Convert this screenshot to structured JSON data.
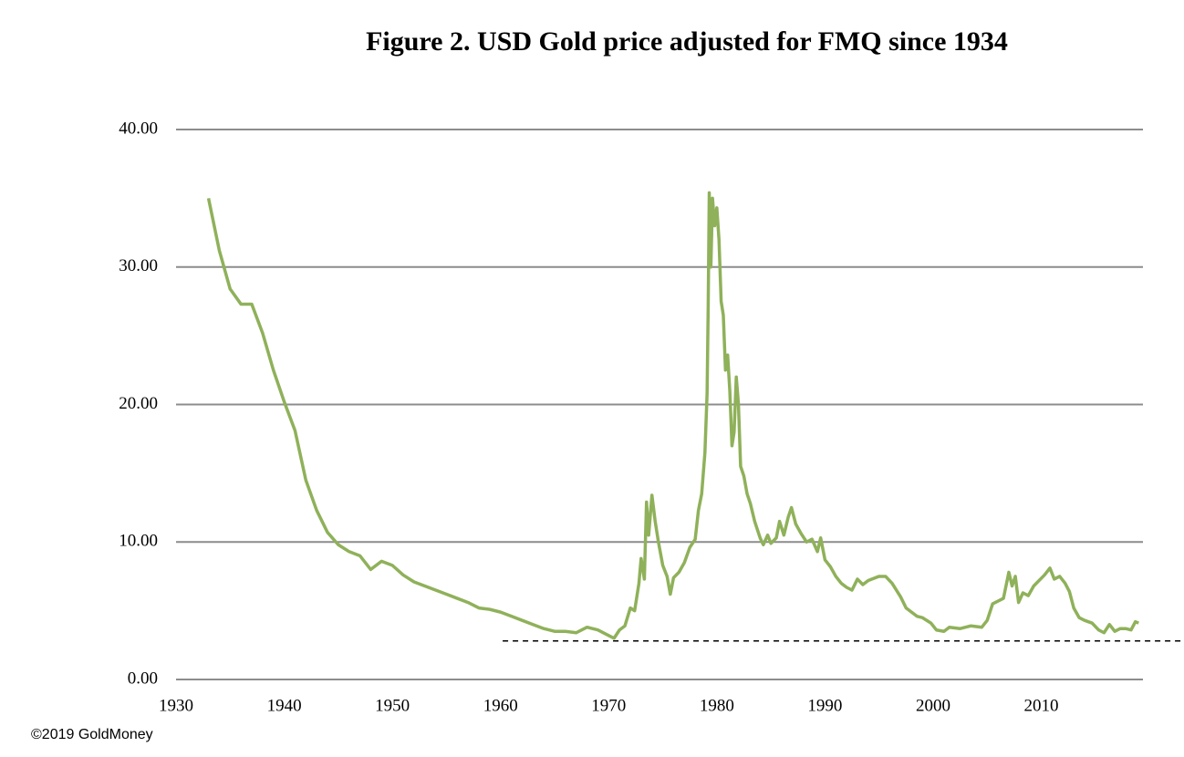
{
  "chart_data": {
    "type": "line",
    "title": "Figure 2. USD Gold price adjusted for FMQ since 1934",
    "footer": "©2019 GoldMoney",
    "xlim": [
      1930,
      2019.4
    ],
    "xticks": [
      1930,
      1940,
      1950,
      1960,
      1970,
      1980,
      1990,
      2000,
      2010
    ],
    "ylim": [
      0,
      40
    ],
    "yticks": [
      {
        "value": 0,
        "label": "0.00"
      },
      {
        "value": 10,
        "label": "10.00"
      },
      {
        "value": 20,
        "label": "20.00"
      },
      {
        "value": 30,
        "label": "30.00"
      },
      {
        "value": 40,
        "label": "40.00"
      }
    ],
    "grid": true,
    "reference_line": {
      "y": 2.8,
      "x_start": 1960.2,
      "style": "dashed",
      "color": "#000000"
    },
    "series": [
      {
        "color": "#8fb15a",
        "x": [
          1933,
          1934,
          1935,
          1936,
          1937,
          1938,
          1939,
          1940,
          1941,
          1942,
          1943,
          1944,
          1945,
          1946,
          1947,
          1948,
          1949,
          1950,
          1951,
          1952,
          1953,
          1954,
          1955,
          1956,
          1957,
          1958,
          1959,
          1960,
          1961,
          1962,
          1963,
          1964,
          1965,
          1966,
          1967,
          1968,
          1969,
          1970,
          1970.5,
          1971,
          1971.5,
          1972,
          1972.4,
          1972.8,
          1973.0,
          1973.3,
          1973.5,
          1973.7,
          1974.0,
          1974.3,
          1974.6,
          1975.0,
          1975.4,
          1975.7,
          1976.0,
          1976.5,
          1977.0,
          1977.5,
          1978.0,
          1978.3,
          1978.6,
          1978.9,
          1979.1,
          1979.2,
          1979.3,
          1979.45,
          1979.6,
          1979.8,
          1980.0,
          1980.2,
          1980.4,
          1980.6,
          1980.8,
          1981.0,
          1981.2,
          1981.4,
          1981.6,
          1981.8,
          1982.0,
          1982.2,
          1982.5,
          1982.8,
          1983.1,
          1983.5,
          1984.0,
          1984.3,
          1984.7,
          1985.0,
          1985.5,
          1985.8,
          1986.2,
          1986.6,
          1986.9,
          1987.3,
          1987.8,
          1988.3,
          1988.8,
          1989.3,
          1989.6,
          1990.0,
          1990.5,
          1991.0,
          1991.5,
          1992.0,
          1992.5,
          1993.0,
          1993.5,
          1994.0,
          1995.0,
          1995.6,
          1996.2,
          1997.0,
          1997.5,
          1998.0,
          1998.5,
          1999.0,
          1999.8,
          2000.3,
          2001.0,
          2001.5,
          2002.5,
          2003.5,
          2004.5,
          2005.0,
          2005.5,
          2006.0,
          2006.5,
          2007.0,
          2007.3,
          2007.6,
          2007.9,
          2008.3,
          2008.8,
          2009.3,
          2009.8,
          2010.3,
          2010.8,
          2011.2,
          2011.7,
          2012.2,
          2012.6,
          2013.0,
          2013.5,
          2014.0,
          2014.7,
          2015.3,
          2015.8,
          2016.3,
          2016.8,
          2017.3,
          2017.8,
          2018.3,
          2018.7,
          2019.0
        ],
        "values": [
          35.0,
          31.2,
          28.4,
          27.3,
          27.3,
          25.2,
          22.5,
          20.2,
          18.1,
          14.5,
          12.3,
          10.7,
          9.8,
          9.3,
          9.0,
          8.0,
          8.6,
          8.3,
          7.6,
          7.1,
          6.8,
          6.5,
          6.2,
          5.9,
          5.6,
          5.2,
          5.1,
          4.9,
          4.6,
          4.3,
          4.0,
          3.7,
          3.5,
          3.5,
          3.4,
          3.8,
          3.6,
          3.2,
          3.0,
          3.6,
          3.9,
          5.2,
          5.0,
          7.0,
          8.8,
          7.3,
          12.9,
          10.5,
          13.4,
          11.5,
          10.0,
          8.3,
          7.5,
          6.2,
          7.4,
          7.8,
          8.5,
          9.6,
          10.2,
          12.3,
          13.5,
          16.5,
          20.8,
          27.0,
          35.4,
          30.0,
          35.0,
          33.0,
          34.3,
          32.0,
          27.5,
          26.5,
          22.5,
          23.6,
          21.0,
          17.0,
          18.0,
          22.0,
          20.0,
          15.5,
          14.8,
          13.5,
          12.8,
          11.5,
          10.3,
          9.8,
          10.5,
          9.9,
          10.3,
          11.5,
          10.5,
          11.8,
          12.5,
          11.3,
          10.6,
          10.0,
          10.2,
          9.3,
          10.3,
          8.7,
          8.2,
          7.5,
          7.0,
          6.7,
          6.5,
          7.3,
          6.9,
          7.2,
          7.5,
          7.5,
          7.0,
          6.0,
          5.2,
          4.9,
          4.6,
          4.5,
          4.1,
          3.6,
          3.5,
          3.8,
          3.7,
          3.9,
          3.8,
          4.3,
          5.5,
          5.7,
          5.9,
          7.8,
          6.8,
          7.5,
          5.6,
          6.3,
          6.1,
          6.8,
          7.2,
          7.6,
          8.1,
          7.3,
          7.5,
          7.0,
          6.4,
          5.2,
          4.5,
          4.3,
          4.1,
          3.6,
          3.4,
          4.0,
          3.5,
          3.7,
          3.7,
          3.6,
          4.2,
          4.1
        ]
      }
    ]
  }
}
